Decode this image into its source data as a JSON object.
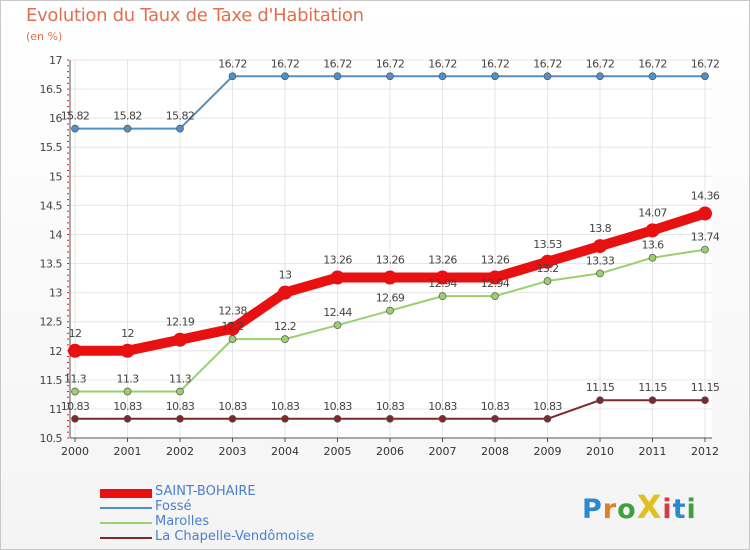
{
  "title": "Evolution du Taux de Taxe d'Habitation",
  "subtitle": "(en %)",
  "logo_text": "ProXiti",
  "logo_colors": [
    "#2a8ad0",
    "#e08020",
    "#40a040",
    "#e0c020",
    "#d04040",
    "#2a8ad0",
    "#40a040"
  ],
  "chart_data": {
    "type": "line",
    "x": [
      "2000",
      "2001",
      "2002",
      "2003",
      "2004",
      "2005",
      "2006",
      "2007",
      "2008",
      "2009",
      "2010",
      "2011",
      "2012"
    ],
    "ylim": [
      10.5,
      17
    ],
    "yticks": [
      "10.5",
      "11",
      "11.5",
      "12",
      "12.5",
      "13",
      "13.5",
      "14",
      "14.5",
      "15",
      "15.5",
      "16",
      "16.5",
      "17"
    ],
    "grid": true,
    "legend_placement": "bottom-left",
    "series": [
      {
        "name": "SAINT-BOHAIRE",
        "color": "#e81010",
        "values": [
          12,
          12,
          12.19,
          12.38,
          13,
          13.26,
          13.26,
          13.26,
          13.26,
          13.53,
          13.8,
          14.07,
          14.36
        ],
        "labels": [
          "12",
          "12",
          "12.19",
          "12.38",
          "13",
          "13.26",
          "13.26",
          "13.26",
          "13.26",
          "13.53",
          "13.8",
          "14.07",
          "14.36"
        ]
      },
      {
        "name": "Fossé",
        "color": "#5090c8",
        "values": [
          15.82,
          15.82,
          15.82,
          16.72,
          16.72,
          16.72,
          16.72,
          16.72,
          16.72,
          16.72,
          16.72,
          16.72,
          16.72
        ],
        "labels": [
          "15.82",
          "15.82",
          "15.82",
          "16.72",
          "16.72",
          "16.72",
          "16.72",
          "16.72",
          "16.72",
          "16.72",
          "16.72",
          "16.72",
          "16.72"
        ]
      },
      {
        "name": "Marolles",
        "color": "#9ad070",
        "values": [
          11.3,
          11.3,
          11.3,
          12.2,
          12.2,
          12.44,
          12.69,
          12.94,
          12.94,
          13.2,
          13.33,
          13.6,
          13.74
        ],
        "labels": [
          "11.3",
          "11.3",
          "11.3",
          "12.2",
          "12.2",
          "12.44",
          "12.69",
          "12.94",
          "12.94",
          "13.2",
          "13.33",
          "13.6",
          "13.74"
        ]
      },
      {
        "name": "La Chapelle-Vendômoise",
        "color": "#7a2a2a",
        "values": [
          10.83,
          10.83,
          10.83,
          10.83,
          10.83,
          10.83,
          10.83,
          10.83,
          10.83,
          10.83,
          11.15,
          11.15,
          11.15
        ],
        "labels": [
          "10.83",
          "10.83",
          "10.83",
          "10.83",
          "10.83",
          "10.83",
          "10.83",
          "10.83",
          "10.83",
          "10.83",
          "11.15",
          "11.15",
          "11.15"
        ]
      }
    ]
  }
}
